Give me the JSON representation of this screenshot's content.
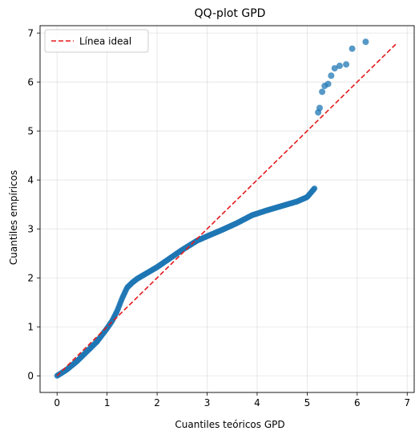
{
  "chart_data": {
    "type": "scatter",
    "title": "QQ-plot GPD",
    "xlabel": "Cuantiles teóricos GPD",
    "ylabel": "Cuantiles empíricos",
    "xlim": [
      -0.34,
      7.14
    ],
    "ylim": [
      -0.34,
      7.15
    ],
    "xticks": [
      "0",
      "1",
      "2",
      "3",
      "4",
      "5",
      "6",
      "7"
    ],
    "yticks": [
      "0",
      "1",
      "2",
      "3",
      "4",
      "5",
      "6",
      "7"
    ],
    "grid": true,
    "legend": {
      "placement": "top-left",
      "entries": [
        "Línea ideal"
      ]
    },
    "colors": {
      "points": "#1f77b4",
      "line": "#e41a1c"
    },
    "reference_line": {
      "name": "Línea ideal",
      "x": [
        0,
        6.8
      ],
      "y": [
        0,
        6.8
      ],
      "style": "dashed"
    },
    "series": [
      {
        "marker": "circle",
        "curve_knots": [
          [
            0,
            0
          ],
          [
            0.2,
            0.13
          ],
          [
            0.4,
            0.3
          ],
          [
            0.6,
            0.5
          ],
          [
            0.8,
            0.7
          ],
          [
            1.0,
            0.97
          ],
          [
            1.1,
            1.12
          ],
          [
            1.2,
            1.32
          ],
          [
            1.3,
            1.58
          ],
          [
            1.4,
            1.8
          ],
          [
            1.5,
            1.9
          ],
          [
            1.6,
            1.98
          ],
          [
            1.8,
            2.1
          ],
          [
            2.0,
            2.22
          ],
          [
            2.2,
            2.36
          ],
          [
            2.5,
            2.57
          ],
          [
            2.8,
            2.76
          ],
          [
            3.0,
            2.85
          ],
          [
            3.3,
            2.98
          ],
          [
            3.6,
            3.12
          ],
          [
            3.9,
            3.28
          ],
          [
            4.2,
            3.38
          ],
          [
            4.5,
            3.47
          ],
          [
            4.8,
            3.56
          ],
          [
            5.0,
            3.65
          ],
          [
            5.15,
            3.83
          ]
        ],
        "outliers": [
          [
            5.22,
            5.38
          ],
          [
            5.25,
            5.47
          ],
          [
            5.3,
            5.8
          ],
          [
            5.35,
            5.92
          ],
          [
            5.42,
            5.96
          ],
          [
            5.48,
            6.13
          ],
          [
            5.55,
            6.28
          ],
          [
            5.65,
            6.33
          ],
          [
            5.78,
            6.36
          ],
          [
            5.9,
            6.68
          ],
          [
            6.17,
            6.82
          ]
        ]
      }
    ]
  }
}
